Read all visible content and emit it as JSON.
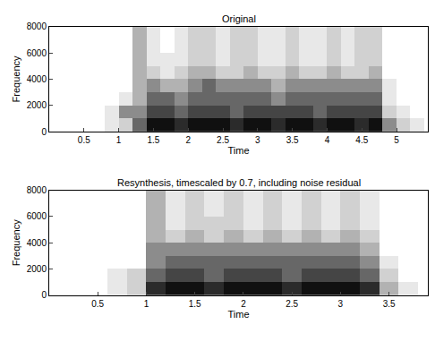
{
  "chart_data": [
    {
      "type": "heatmap",
      "title": "Original",
      "x_label": "Time",
      "y_label": "Frequency",
      "x": [
        0.1,
        0.3,
        0.5,
        0.7,
        0.9,
        1.1,
        1.3,
        1.5,
        1.7,
        1.9,
        2.1,
        2.3,
        2.5,
        2.7,
        2.9,
        3.1,
        3.3,
        3.5,
        3.7,
        3.9,
        4.1,
        4.3,
        4.5,
        4.7,
        4.9,
        5.1,
        5.3
      ],
      "y": [
        500,
        1500,
        2500,
        3500,
        4500,
        5500,
        6500,
        7500
      ],
      "z": [
        [
          0,
          0,
          0,
          0,
          0.1,
          0.2,
          0.5,
          0.8,
          0.8,
          0.7,
          0.8,
          0.8,
          0.8,
          0.7,
          0.8,
          0.8,
          0.7,
          0.8,
          0.8,
          0.7,
          0.8,
          0.8,
          0.7,
          0.8,
          0.4,
          0.2,
          0.1
        ],
        [
          0,
          0,
          0,
          0,
          0.1,
          0.4,
          0.4,
          0.6,
          0.6,
          0.5,
          0.6,
          0.6,
          0.6,
          0.5,
          0.6,
          0.6,
          0.6,
          0.6,
          0.6,
          0.5,
          0.6,
          0.6,
          0.6,
          0.6,
          0.2,
          0.1,
          0
        ],
        [
          0,
          0,
          0,
          0,
          0,
          0.1,
          0.3,
          0.5,
          0.5,
          0.4,
          0.5,
          0.5,
          0.5,
          0.5,
          0.5,
          0.5,
          0.4,
          0.5,
          0.5,
          0.5,
          0.5,
          0.5,
          0.5,
          0.5,
          0.1,
          0,
          0
        ],
        [
          0,
          0,
          0,
          0,
          0,
          0,
          0.3,
          0.4,
          0.3,
          0.3,
          0.4,
          0.5,
          0.4,
          0.4,
          0.4,
          0.4,
          0.3,
          0.4,
          0.4,
          0.4,
          0.4,
          0.4,
          0.4,
          0.4,
          0.1,
          0,
          0
        ],
        [
          0,
          0,
          0,
          0,
          0,
          0,
          0.3,
          0.2,
          0.1,
          0.2,
          0.3,
          0.3,
          0.2,
          0.2,
          0.3,
          0.2,
          0.2,
          0.3,
          0.2,
          0.2,
          0.3,
          0.2,
          0.2,
          0.3,
          0,
          0,
          0
        ],
        [
          0,
          0,
          0,
          0,
          0,
          0,
          0.3,
          0.1,
          0.1,
          0.1,
          0.2,
          0.2,
          0.1,
          0.2,
          0.2,
          0.1,
          0.1,
          0.2,
          0.1,
          0.1,
          0.2,
          0.1,
          0.2,
          0.2,
          0,
          0,
          0
        ],
        [
          0,
          0,
          0,
          0,
          0,
          0,
          0.3,
          0.1,
          0,
          0.1,
          0.2,
          0.2,
          0.1,
          0.2,
          0.2,
          0.1,
          0.1,
          0.2,
          0.1,
          0.1,
          0.2,
          0.1,
          0.2,
          0.2,
          0,
          0,
          0
        ],
        [
          0,
          0,
          0,
          0,
          0,
          0,
          0.3,
          0.1,
          0,
          0.1,
          0.2,
          0.2,
          0.1,
          0.2,
          0.2,
          0.1,
          0.1,
          0.2,
          0.1,
          0.1,
          0.2,
          0.1,
          0.2,
          0.2,
          0,
          0,
          0
        ]
      ],
      "xlim": [
        0,
        5.45
      ],
      "ylim": [
        0,
        8000
      ],
      "xticks": [
        0.5,
        1,
        1.5,
        2,
        2.5,
        3,
        3.5,
        4,
        4.5,
        5
      ],
      "yticks": [
        0,
        2000,
        4000,
        6000,
        8000
      ]
    },
    {
      "type": "heatmap",
      "title": "Resynthesis, timescaled by 0.7, including noise residual",
      "x_label": "Time",
      "y_label": "Frequency",
      "x": [
        0.1,
        0.3,
        0.5,
        0.7,
        0.9,
        1.1,
        1.3,
        1.5,
        1.7,
        1.9,
        2.1,
        2.3,
        2.5,
        2.7,
        2.9,
        3.1,
        3.3,
        3.5,
        3.7
      ],
      "y": [
        500,
        1500,
        2500,
        3500,
        4500,
        5500,
        6500,
        7500
      ],
      "z": [
        [
          0,
          0,
          0,
          0.1,
          0.2,
          0.7,
          0.8,
          0.8,
          0.7,
          0.8,
          0.8,
          0.8,
          0.7,
          0.8,
          0.8,
          0.8,
          0.7,
          0.3,
          0.1
        ],
        [
          0,
          0,
          0,
          0.1,
          0.2,
          0.5,
          0.6,
          0.6,
          0.5,
          0.6,
          0.6,
          0.6,
          0.5,
          0.6,
          0.6,
          0.6,
          0.5,
          0.2,
          0
        ],
        [
          0,
          0,
          0,
          0,
          0,
          0.4,
          0.5,
          0.5,
          0.5,
          0.5,
          0.5,
          0.5,
          0.5,
          0.5,
          0.5,
          0.5,
          0.4,
          0.1,
          0
        ],
        [
          0,
          0,
          0,
          0,
          0,
          0.4,
          0.4,
          0.4,
          0.4,
          0.4,
          0.4,
          0.4,
          0.4,
          0.4,
          0.4,
          0.4,
          0.3,
          0,
          0
        ],
        [
          0,
          0,
          0,
          0,
          0,
          0.3,
          0.2,
          0.3,
          0.2,
          0.3,
          0.2,
          0.3,
          0.2,
          0.3,
          0.2,
          0.3,
          0.2,
          0,
          0
        ],
        [
          0,
          0,
          0,
          0,
          0,
          0.3,
          0.1,
          0.2,
          0.2,
          0.2,
          0.1,
          0.2,
          0.1,
          0.2,
          0.1,
          0.2,
          0.1,
          0,
          0
        ],
        [
          0,
          0,
          0,
          0,
          0,
          0.3,
          0.1,
          0.2,
          0.1,
          0.2,
          0.1,
          0.2,
          0.1,
          0.2,
          0.1,
          0.2,
          0.1,
          0,
          0
        ],
        [
          0,
          0,
          0,
          0,
          0,
          0.3,
          0.1,
          0.2,
          0.1,
          0.2,
          0.1,
          0.2,
          0.1,
          0.2,
          0.1,
          0.2,
          0.1,
          0,
          0
        ]
      ],
      "xlim": [
        0,
        3.9
      ],
      "ylim": [
        0,
        8000
      ],
      "xticks": [
        0.5,
        1,
        1.5,
        2,
        2.5,
        3,
        3.5
      ],
      "yticks": [
        0,
        2000,
        4000,
        6000,
        8000
      ]
    }
  ]
}
